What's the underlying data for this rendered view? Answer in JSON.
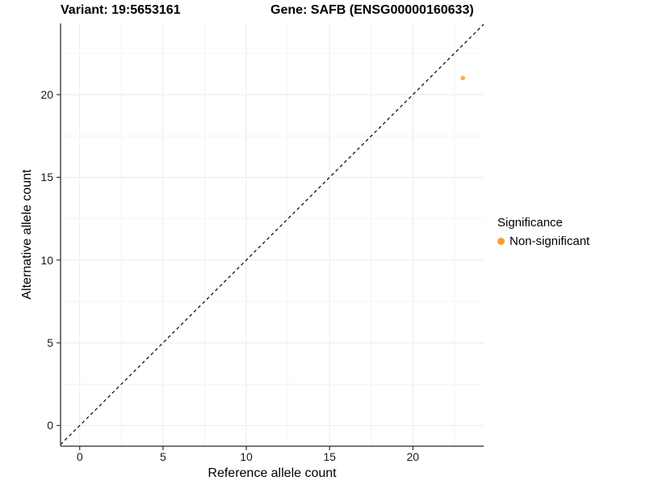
{
  "titles": {
    "variant": "Variant: 19:5653161",
    "gene": "Gene: SAFB (ENSG00000160633)"
  },
  "axes": {
    "x_label": "Reference allele count",
    "y_label": "Alternative allele count"
  },
  "legend": {
    "title": "Significance",
    "items": [
      {
        "label": "Non-significant",
        "color": "#F8A029"
      }
    ]
  },
  "colors": {
    "point": "#F8A029",
    "axis_line": "#4a4a4a",
    "tick": "#333333",
    "grid_major": "#EBEBEB",
    "grid_minor": "#F4F4F4",
    "reference_line": "#000000"
  },
  "chart_data": {
    "type": "scatter",
    "title": "Variant: 19:5653161  Gene: SAFB (ENSG00000160633)",
    "xlabel": "Reference allele count",
    "ylabel": "Alternative allele count",
    "xlim": [
      -1.15,
      24.25
    ],
    "ylim": [
      -1.25,
      24.3
    ],
    "x_ticks": [
      0,
      5,
      10,
      15,
      20
    ],
    "y_ticks": [
      0,
      5,
      10,
      15,
      20
    ],
    "x_minor_ticks": [
      2.5,
      7.5,
      12.5,
      17.5,
      22.5
    ],
    "y_minor_ticks": [
      2.5,
      7.5,
      12.5,
      17.5,
      22.5
    ],
    "grid": true,
    "legend_position": "right",
    "series": [
      {
        "name": "Non-significant",
        "color": "#F8A029",
        "points": [
          {
            "x": 23,
            "y": 21
          }
        ]
      }
    ],
    "reference_line": {
      "type": "identity",
      "slope": 1,
      "intercept": 0,
      "style": "dashed"
    }
  }
}
